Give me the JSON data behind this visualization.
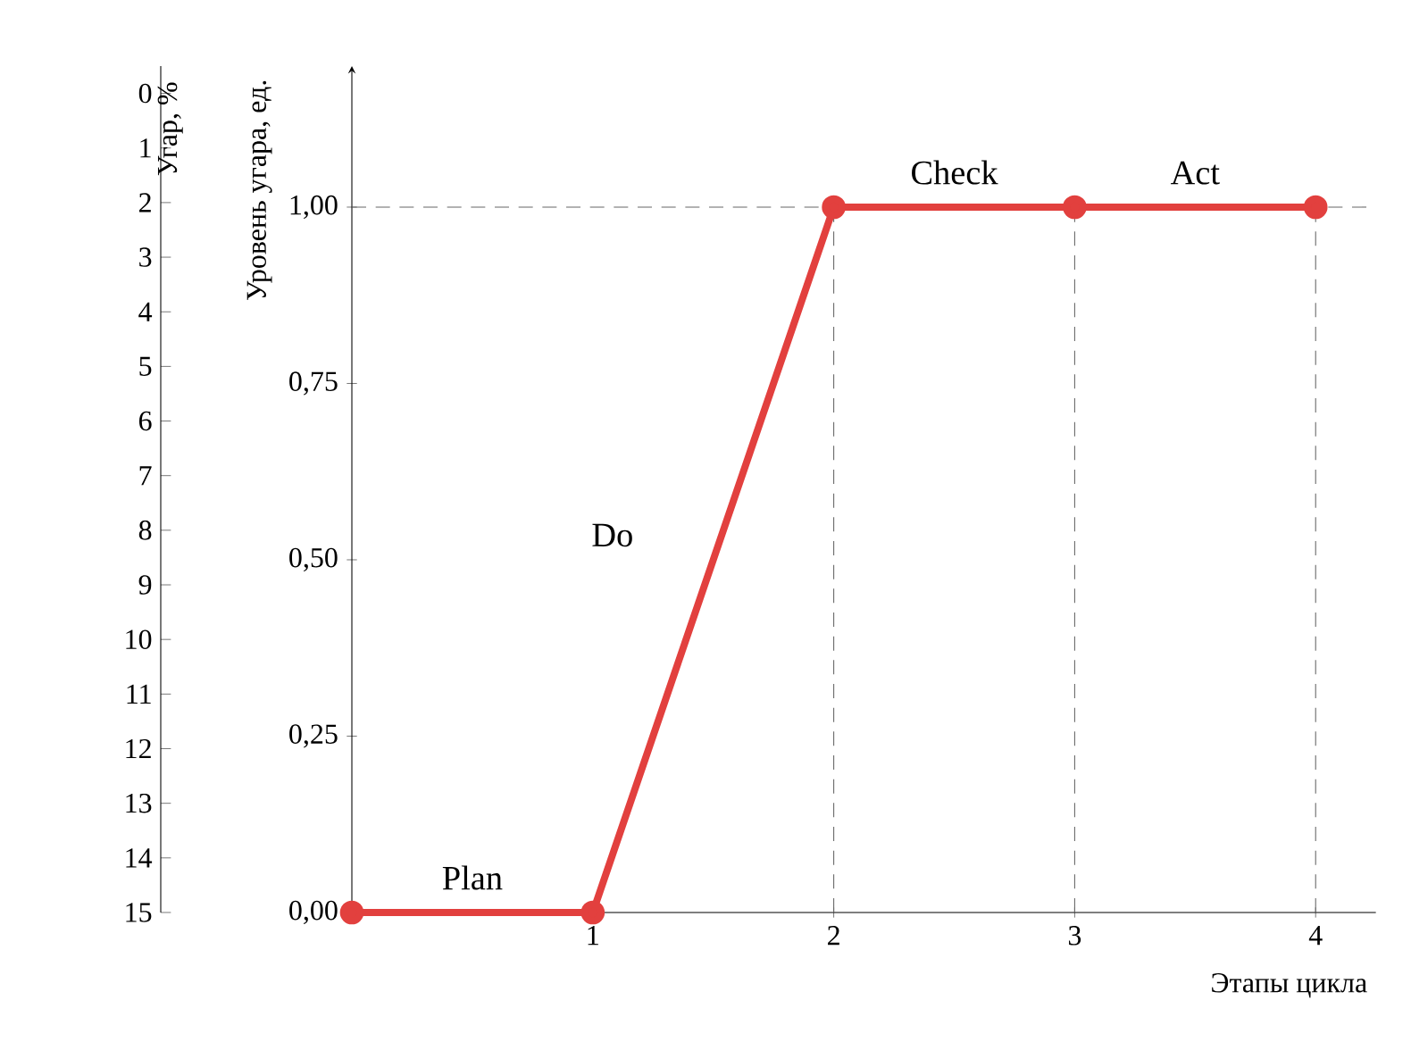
{
  "chart_data": {
    "type": "line",
    "x": [
      0,
      1,
      2,
      3,
      4
    ],
    "values": [
      0,
      0,
      1,
      1,
      1
    ],
    "color": "#e2403e",
    "marker": "circle",
    "line_style": "solid",
    "grid": false,
    "xlabel": "Этапы цикла",
    "ylabel": "Уровень угара, ед.",
    "y2label": "Угар, %",
    "xlim": [
      0,
      4.25
    ],
    "xticks": [
      1,
      2,
      3,
      4
    ],
    "ylim": [
      0,
      1.2
    ],
    "yticks": [
      {
        "value": 0,
        "label": "0,00"
      },
      {
        "value": 0.25,
        "label": "0,25"
      },
      {
        "value": 0.5,
        "label": "0,50"
      },
      {
        "value": 0.75,
        "label": "0,75"
      },
      {
        "value": 1,
        "label": "1,00"
      }
    ],
    "y2lim": [
      15,
      -0.5
    ],
    "y2ticks": [
      0,
      1,
      2,
      3,
      4,
      5,
      6,
      7,
      8,
      9,
      10,
      11,
      12,
      13,
      14,
      15
    ],
    "ref_lines": [
      {
        "axis": "y",
        "value": 1,
        "line_style": "dashed"
      },
      {
        "axis": "x",
        "value": 2,
        "line_style": "dashed"
      },
      {
        "axis": "x",
        "value": 3,
        "line_style": "dashed"
      },
      {
        "axis": "x",
        "value": 4,
        "line_style": "dashed"
      }
    ],
    "annotations": [
      "Plan",
      "Do",
      "Check",
      "Act"
    ]
  }
}
